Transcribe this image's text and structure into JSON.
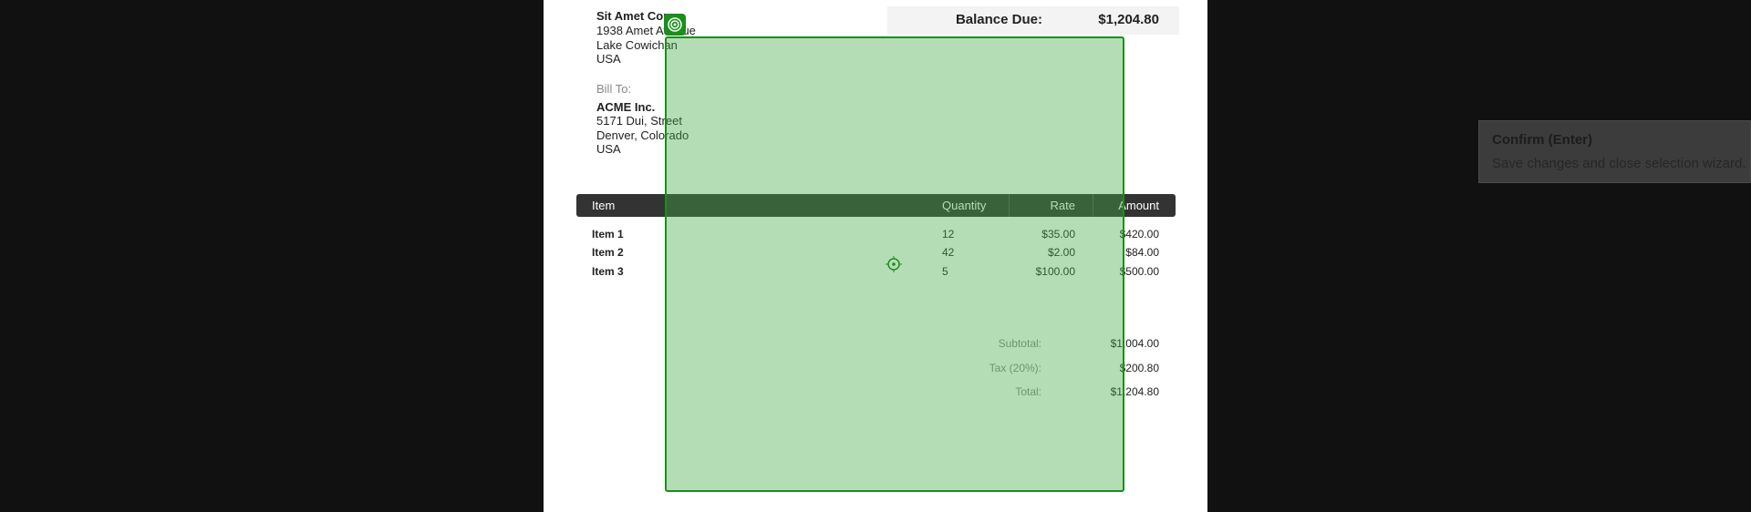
{
  "sender": {
    "name": "Sit Amet Corp",
    "lines": [
      "1938 Amet Avenue",
      "Lake Cowichan",
      "USA"
    ]
  },
  "bill_to": {
    "label": "Bill To:",
    "name": "ACME Inc.",
    "lines": [
      "5171 Dui, Street",
      "Denver, Colorado",
      "USA"
    ]
  },
  "balance_due": {
    "label": "Balance Due:",
    "amount": "$1,204.80"
  },
  "table": {
    "headers": [
      "Item",
      "Quantity",
      "Rate",
      "Amount"
    ],
    "rows": [
      [
        "Item 1",
        "12",
        "$35.00",
        "$420.00"
      ],
      [
        "Item 2",
        "42",
        "$2.00",
        "$84.00"
      ],
      [
        "Item 3",
        "5",
        "$100.00",
        "$500.00"
      ]
    ]
  },
  "totals": [
    [
      "Subtotal:",
      "$1,004.00"
    ],
    [
      "Tax (20%):",
      "$200.80"
    ],
    [
      "Total:",
      "$1,204.80"
    ]
  ],
  "tooltip": {
    "title": "Confirm (Enter)",
    "text": "Save changes and close selection wizard."
  }
}
